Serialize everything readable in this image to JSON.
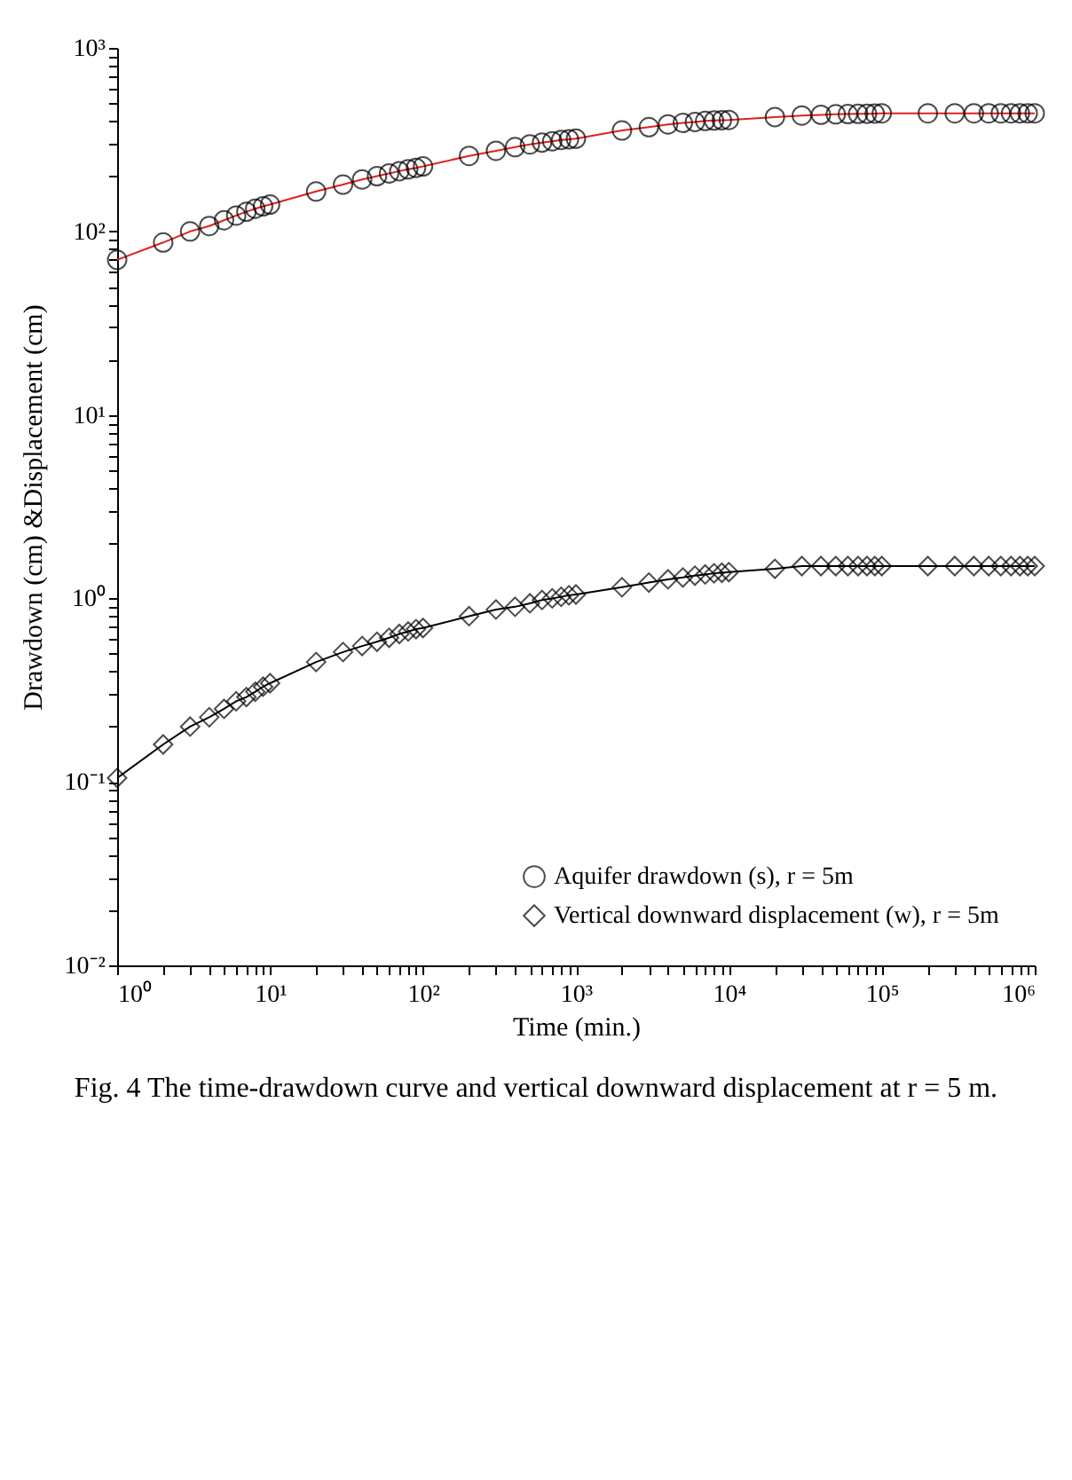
{
  "chart_data": {
    "type": "scatter",
    "xlabel": "Time (min.)",
    "ylabel": "Drawdown (cm) &Displacement (cm)",
    "annotations": [
      "Fig. 4 The time-drawdown curve and vertical downward displacement at r = 5 m."
    ],
    "log": "xy",
    "legend": "bottom right",
    "grid": false,
    "xlim": [
      1,
      1000000
    ],
    "ylim": [
      0.01,
      1000
    ],
    "xticks": [
      {
        "value": 1,
        "label": "10⁰"
      },
      {
        "value": 2,
        "label": null
      },
      {
        "value": 3,
        "label": null
      },
      {
        "value": 4,
        "label": null
      },
      {
        "value": 5,
        "label": null
      },
      {
        "value": 6,
        "label": null
      },
      {
        "value": 7,
        "label": null
      },
      {
        "value": 8,
        "label": null
      },
      {
        "value": 9,
        "label": null
      },
      {
        "value": 10,
        "label": "10¹"
      },
      {
        "value": 20,
        "label": null
      },
      {
        "value": 30,
        "label": null
      },
      {
        "value": 40,
        "label": null
      },
      {
        "value": 50,
        "label": null
      },
      {
        "value": 60,
        "label": null
      },
      {
        "value": 70,
        "label": null
      },
      {
        "value": 80,
        "label": null
      },
      {
        "value": 90,
        "label": null
      },
      {
        "value": 100,
        "label": "10²"
      },
      {
        "value": 200,
        "label": null
      },
      {
        "value": 300,
        "label": null
      },
      {
        "value": 400,
        "label": null
      },
      {
        "value": 500,
        "label": null
      },
      {
        "value": 600,
        "label": null
      },
      {
        "value": 700,
        "label": null
      },
      {
        "value": 800,
        "label": null
      },
      {
        "value": 900,
        "label": null
      },
      {
        "value": 1000,
        "label": "10³"
      },
      {
        "value": 2000,
        "label": null
      },
      {
        "value": 3000,
        "label": null
      },
      {
        "value": 4000,
        "label": null
      },
      {
        "value": 5000,
        "label": null
      },
      {
        "value": 6000,
        "label": null
      },
      {
        "value": 7000,
        "label": null
      },
      {
        "value": 8000,
        "label": null
      },
      {
        "value": 9000,
        "label": null
      },
      {
        "value": 10000,
        "label": "10⁴"
      },
      {
        "value": 20000,
        "label": null
      },
      {
        "value": 30000,
        "label": null
      },
      {
        "value": 40000,
        "label": null
      },
      {
        "value": 50000,
        "label": null
      },
      {
        "value": 60000,
        "label": null
      },
      {
        "value": 70000,
        "label": null
      },
      {
        "value": 80000,
        "label": null
      },
      {
        "value": 90000,
        "label": null
      },
      {
        "value": 100000,
        "label": "10⁵"
      },
      {
        "value": 200000,
        "label": null
      },
      {
        "value": 300000,
        "label": null
      },
      {
        "value": 400000,
        "label": null
      },
      {
        "value": 500000,
        "label": null
      },
      {
        "value": 600000,
        "label": null
      },
      {
        "value": 700000,
        "label": null
      },
      {
        "value": 800000,
        "label": null
      },
      {
        "value": 900000,
        "label": null
      },
      {
        "value": 1000000,
        "label": "10⁶"
      }
    ],
    "yticks": [
      {
        "value": 0.01,
        "label": "10⁻²"
      },
      {
        "value": 0.02,
        "label": null
      },
      {
        "value": 0.03,
        "label": null
      },
      {
        "value": 0.04,
        "label": null
      },
      {
        "value": 0.05,
        "label": null
      },
      {
        "value": 0.06,
        "label": null
      },
      {
        "value": 0.07,
        "label": null
      },
      {
        "value": 0.08,
        "label": null
      },
      {
        "value": 0.09,
        "label": null
      },
      {
        "value": 0.1,
        "label": "10⁻¹"
      },
      {
        "value": 0.2,
        "label": null
      },
      {
        "value": 0.3,
        "label": null
      },
      {
        "value": 0.4,
        "label": null
      },
      {
        "value": 0.5,
        "label": null
      },
      {
        "value": 0.6,
        "label": null
      },
      {
        "value": 0.7,
        "label": null
      },
      {
        "value": 0.8,
        "label": null
      },
      {
        "value": 0.9,
        "label": null
      },
      {
        "value": 1,
        "label": "10⁰"
      },
      {
        "value": 2,
        "label": null
      },
      {
        "value": 3,
        "label": null
      },
      {
        "value": 4,
        "label": null
      },
      {
        "value": 5,
        "label": null
      },
      {
        "value": 6,
        "label": null
      },
      {
        "value": 7,
        "label": null
      },
      {
        "value": 8,
        "label": null
      },
      {
        "value": 9,
        "label": null
      },
      {
        "value": 10,
        "label": "10¹"
      },
      {
        "value": 20,
        "label": null
      },
      {
        "value": 30,
        "label": null
      },
      {
        "value": 40,
        "label": null
      },
      {
        "value": 50,
        "label": null
      },
      {
        "value": 60,
        "label": null
      },
      {
        "value": 70,
        "label": null
      },
      {
        "value": 80,
        "label": null
      },
      {
        "value": 90,
        "label": null
      },
      {
        "value": 100,
        "label": "10²"
      },
      {
        "value": 200,
        "label": null
      },
      {
        "value": 300,
        "label": null
      },
      {
        "value": 400,
        "label": null
      },
      {
        "value": 500,
        "label": null
      },
      {
        "value": 600,
        "label": null
      },
      {
        "value": 700,
        "label": null
      },
      {
        "value": 800,
        "label": null
      },
      {
        "value": 900,
        "label": null
      },
      {
        "value": 1000,
        "label": "10³"
      }
    ],
    "x": [
      1,
      2,
      3,
      4,
      5,
      6,
      7,
      8,
      9,
      10,
      20,
      30,
      40,
      50,
      60,
      70,
      80,
      90,
      100,
      200,
      300,
      400,
      500,
      600,
      700,
      800,
      900,
      1000,
      2000,
      3000,
      4000,
      5000,
      6000,
      7000,
      8000,
      9000,
      10000,
      20000,
      30000,
      40000,
      50000,
      60000,
      70000,
      80000,
      90000,
      100000,
      200000,
      300000,
      400000,
      500000,
      600000,
      700000,
      800000,
      900000,
      1000000
    ],
    "series": [
      {
        "type": "line",
        "color": "#e02020",
        "line_style": "solid",
        "marker": "none",
        "values": [
          70,
          87,
          100,
          107,
          115,
          122,
          128,
          133,
          137,
          140,
          165,
          180,
          192,
          200,
          207,
          213,
          218,
          222,
          226,
          258,
          275,
          288,
          298,
          305,
          310,
          315,
          318,
          320,
          355,
          370,
          383,
          390,
          395,
          400,
          402,
          404,
          405,
          420,
          428,
          432,
          435,
          436,
          437,
          438,
          439,
          440,
          440,
          440,
          440,
          440,
          440,
          440,
          440,
          440,
          440
        ]
      },
      {
        "type": "line",
        "color": "#000000",
        "line_style": "solid",
        "marker": "none",
        "values": [
          0.105,
          0.16,
          0.2,
          0.225,
          0.25,
          0.275,
          0.29,
          0.31,
          0.33,
          0.345,
          0.45,
          0.51,
          0.55,
          0.58,
          0.61,
          0.64,
          0.66,
          0.68,
          0.69,
          0.8,
          0.87,
          0.9,
          0.94,
          0.98,
          1.0,
          1.02,
          1.04,
          1.05,
          1.15,
          1.22,
          1.27,
          1.3,
          1.33,
          1.35,
          1.37,
          1.38,
          1.39,
          1.45,
          1.5,
          1.5,
          1.5,
          1.5,
          1.5,
          1.5,
          1.5,
          1.5,
          1.5,
          1.5,
          1.5,
          1.5,
          1.5,
          1.5,
          1.5,
          1.5,
          1.5
        ]
      },
      {
        "name": "Aquifer drawdown (s), r = 5m",
        "color": "#000000",
        "marker": "circle",
        "values": [
          70,
          87,
          100,
          107,
          115,
          122,
          128,
          133,
          137,
          140,
          165,
          180,
          192,
          200,
          207,
          213,
          218,
          222,
          226,
          258,
          275,
          288,
          298,
          305,
          310,
          315,
          318,
          320,
          355,
          370,
          383,
          390,
          395,
          400,
          402,
          404,
          405,
          420,
          428,
          432,
          435,
          436,
          437,
          438,
          439,
          440,
          440,
          440,
          440,
          440,
          440,
          440,
          440,
          440,
          440
        ]
      },
      {
        "name": "Vertical downward displacement (w), r = 5m",
        "color": "#000000",
        "marker": "diamond",
        "values": [
          0.105,
          0.16,
          0.2,
          0.225,
          0.25,
          0.275,
          0.29,
          0.31,
          0.33,
          0.345,
          0.45,
          0.51,
          0.55,
          0.58,
          0.61,
          0.64,
          0.66,
          0.68,
          0.69,
          0.8,
          0.87,
          0.9,
          0.94,
          0.98,
          1.0,
          1.02,
          1.04,
          1.05,
          1.15,
          1.22,
          1.27,
          1.3,
          1.33,
          1.35,
          1.37,
          1.38,
          1.39,
          1.45,
          1.5,
          1.5,
          1.5,
          1.5,
          1.5,
          1.5,
          1.5,
          1.5,
          1.5,
          1.5,
          1.5,
          1.5,
          1.5,
          1.5,
          1.5,
          1.5,
          1.5
        ]
      }
    ]
  }
}
